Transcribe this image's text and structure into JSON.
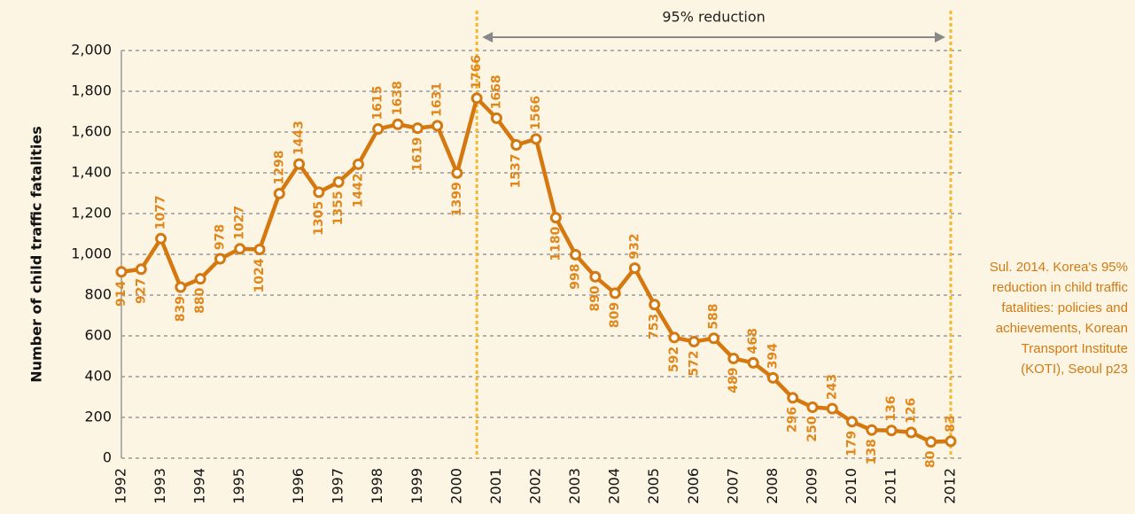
{
  "chart_data": {
    "type": "line",
    "y_label": "Number of child traffic fatalities",
    "annotation": "95% reduction",
    "source": "Sul. 2014. Korea's 95% reduction in child traffic fatalities: policies and achievements, Korean Transport Institute (KOTI), Seoul p23",
    "categories": [
      "1992",
      null,
      "1993",
      null,
      "1994",
      null,
      "1995",
      null,
      null,
      "1996",
      null,
      "1997",
      null,
      "1998",
      null,
      "1999",
      null,
      "2000",
      null,
      "2001",
      null,
      "2002",
      null,
      "2003",
      null,
      "2004",
      null,
      "2005",
      null,
      "2006",
      null,
      "2007",
      null,
      "2008",
      null,
      "2009",
      null,
      "2010",
      null,
      "2011",
      null,
      null,
      "2012"
    ],
    "series": [
      {
        "name": "Child traffic fatalities",
        "color": "#d4780f",
        "values": [
          914,
          927,
          1077,
          839,
          880,
          978,
          1027,
          1024,
          1298,
          1443,
          1305,
          1355,
          1442,
          1615,
          1638,
          1619,
          1631,
          1399,
          1766,
          1668,
          1537,
          1566,
          1180,
          998,
          890,
          809,
          932,
          753,
          592,
          572,
          588,
          489,
          468,
          394,
          296,
          250,
          243,
          179,
          138,
          136,
          126,
          80,
          83
        ]
      }
    ],
    "ylim": [
      0,
      2000
    ],
    "yticks": [
      0,
      200,
      400,
      600,
      800,
      {
        "value": 1000,
        "label": "1,000"
      },
      {
        "value": 1200,
        "label": "1,200"
      },
      {
        "value": 1400,
        "label": "1,400"
      },
      {
        "value": 1600,
        "label": "1,600"
      },
      {
        "value": 1800,
        "label": "1,800"
      },
      {
        "value": 2000,
        "label": "2,000"
      }
    ],
    "grid": true
  }
}
